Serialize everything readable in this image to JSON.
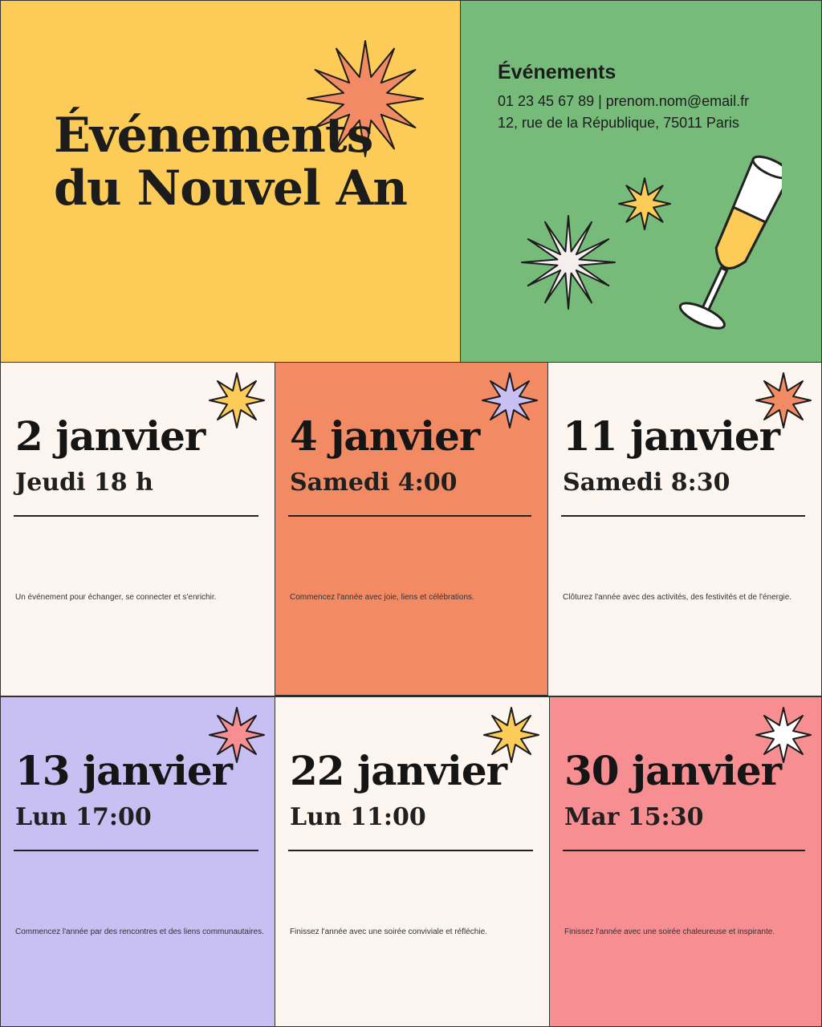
{
  "header": {
    "title_line1": "Événements",
    "title_line2": "du Nouvel An",
    "background": "#FDCB58"
  },
  "contact": {
    "heading": "Événements",
    "phone_email": "01 23 45 67 89 | prenom.nom@email.fr",
    "address": "12, rue de la République, 75011 Paris",
    "background": "#77BB7B"
  },
  "events": [
    {
      "date": "2 janvier",
      "time": "Jeudi 18 h",
      "description": "Un événement pour échanger, se connecter et s'enrichir.",
      "background": "#FDF5EF",
      "star_color": "#FDCB58"
    },
    {
      "date": "4 janvier",
      "time": "Samedi 4:00",
      "description": "Commencez l'année avec joie, liens et célébrations.",
      "background": "#F28A63",
      "star_color": "#C8BFF2"
    },
    {
      "date": "11 janvier",
      "time": "Samedi 8:30",
      "description": "Clôturez l'année avec des activités, des festivités et de l'énergie.",
      "background": "#FDF5EF",
      "star_color": "#F28A63"
    },
    {
      "date": "13 janvier",
      "time": "Lun 17:00",
      "description": "Commencez l'année par des rencontres et des liens communautaires.",
      "background": "#C8BFF2",
      "star_color": "#F78E92"
    },
    {
      "date": "22 janvier",
      "time": "Lun 11:00",
      "description": "Finissez l'année avec une soirée conviviale et réfléchie.",
      "background": "#FDF5EF",
      "star_color": "#FDCB58"
    },
    {
      "date": "30 janvier",
      "time": "Mar 15:30",
      "description": "Finissez l'année avec une soirée chaleureuse et inspirante.",
      "background": "#F78E92",
      "star_color": "#FFFFFF"
    }
  ],
  "icons": {
    "decor": "starburst-icon",
    "glass": "champagne-glass-icon"
  }
}
